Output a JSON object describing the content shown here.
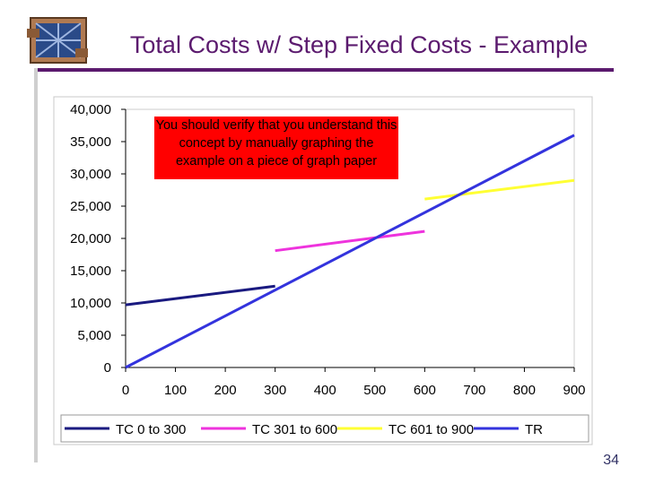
{
  "slide": {
    "title": "Total Costs w/ Step Fixed Costs - Example",
    "callout": "You should verify that you understand this concept by manually graphing the example on a piece of graph paper",
    "page_number": "34"
  },
  "chart_data": {
    "type": "line",
    "title": "",
    "xlabel": "",
    "ylabel": "",
    "xlim": [
      0,
      900
    ],
    "ylim": [
      0,
      40000
    ],
    "x_ticks": [
      "0",
      "100",
      "200",
      "300",
      "400",
      "500",
      "600",
      "700",
      "800",
      "900"
    ],
    "y_ticks": [
      "0",
      "5,000",
      "10,000",
      "15,000",
      "20,000",
      "25,000",
      "30,000",
      "35,000",
      "40,000"
    ],
    "grid": false,
    "legend_position": "bottom",
    "series": [
      {
        "name": "TC 0 to 300",
        "color": "#1a1a80",
        "points": [
          [
            0,
            9700
          ],
          [
            300,
            12600
          ]
        ]
      },
      {
        "name": "TC 301 to 600",
        "color": "#ee33dd",
        "points": [
          [
            300,
            18100
          ],
          [
            600,
            21100
          ]
        ]
      },
      {
        "name": "TC 601 to 900",
        "color": "#ffff33",
        "points": [
          [
            600,
            26100
          ],
          [
            900,
            29000
          ]
        ]
      },
      {
        "name": "TR",
        "color": "#3333dd",
        "points": [
          [
            0,
            0
          ],
          [
            900,
            36000
          ]
        ]
      }
    ]
  }
}
